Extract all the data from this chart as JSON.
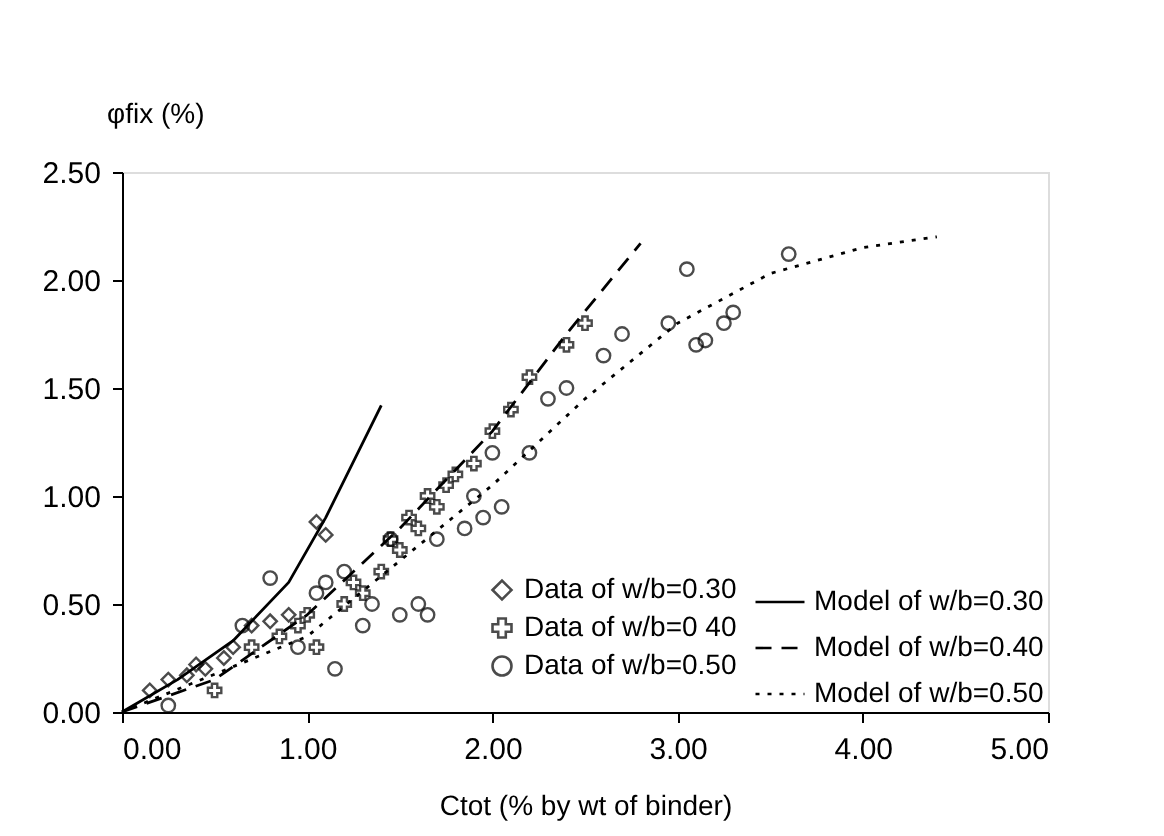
{
  "chart_data": {
    "type": "scatter",
    "ylabel": "φfix (%)",
    "xlabel": "Ctot (% by wt of binder)",
    "xlim": [
      0,
      5
    ],
    "xticks": [
      {
        "value": 0,
        "label": "0.00"
      },
      {
        "value": 1,
        "label": "1.00"
      },
      {
        "value": 2,
        "label": "2.00"
      },
      {
        "value": 3,
        "label": "3.00"
      },
      {
        "value": 4,
        "label": "4.00"
      },
      {
        "value": 5,
        "label": "5.00"
      }
    ],
    "ylim": [
      0,
      2.5
    ],
    "yticks": [
      {
        "value": 0,
        "label": "0.00"
      },
      {
        "value": 0.5,
        "label": "0.50"
      },
      {
        "value": 1,
        "label": "1.00"
      },
      {
        "value": 1.5,
        "label": "1.50"
      },
      {
        "value": 2,
        "label": "2.00"
      },
      {
        "value": 2.5,
        "label": "2.50"
      }
    ],
    "grid": false,
    "legend": "bottom right",
    "series": [
      {
        "name": "Data of w/b=0.30",
        "marker": "diamond",
        "color": "#000000",
        "x": [
          0.15,
          0.25,
          0.35,
          0.45,
          0.55,
          0.7,
          0.8,
          0.9,
          1.05,
          1.1,
          0.6,
          0.4
        ],
        "values": [
          0.1,
          0.15,
          0.17,
          0.2,
          0.25,
          0.4,
          0.42,
          0.45,
          0.88,
          0.82,
          0.3,
          0.22
        ]
      },
      {
        "name": "Data of w/b=0 40",
        "marker": "cross",
        "color": "#000000",
        "x": [
          0.5,
          0.7,
          0.85,
          0.95,
          1.05,
          1.2,
          1.3,
          1.4,
          1.5,
          1.55,
          1.6,
          1.65,
          1.7,
          1.75,
          1.8,
          1.9,
          2.0,
          2.1,
          2.2,
          2.4,
          2.5,
          1.0,
          1.25,
          1.45
        ],
        "values": [
          0.1,
          0.3,
          0.35,
          0.4,
          0.3,
          0.5,
          0.55,
          0.65,
          0.75,
          0.9,
          0.85,
          1.0,
          0.95,
          1.05,
          1.1,
          1.15,
          1.3,
          1.4,
          1.55,
          1.7,
          1.8,
          0.45,
          0.6,
          0.8
        ]
      },
      {
        "name": "Data of w/b=0.50",
        "marker": "circle",
        "color": "#000000",
        "x": [
          0.25,
          0.65,
          0.8,
          0.95,
          1.15,
          1.1,
          1.2,
          1.3,
          1.35,
          1.5,
          1.6,
          1.65,
          1.7,
          1.85,
          1.95,
          2.0,
          2.2,
          2.3,
          2.4,
          2.6,
          2.7,
          2.95,
          3.05,
          3.1,
          3.15,
          3.25,
          3.3,
          3.6,
          1.05,
          1.45,
          1.9,
          2.05
        ],
        "values": [
          0.03,
          0.4,
          0.62,
          0.3,
          0.2,
          0.6,
          0.65,
          0.4,
          0.5,
          0.45,
          0.5,
          0.45,
          0.8,
          0.85,
          0.9,
          1.2,
          1.2,
          1.45,
          1.5,
          1.65,
          1.75,
          1.8,
          2.05,
          1.7,
          1.72,
          1.8,
          1.85,
          2.12,
          0.55,
          0.8,
          1.0,
          0.95
        ]
      },
      {
        "name": "Model of w/b=0.30",
        "type": "line",
        "line_style": "solid",
        "color": "#000000",
        "x": [
          0,
          0.3,
          0.6,
          0.9,
          1.1,
          1.4
        ],
        "values": [
          0,
          0.15,
          0.33,
          0.6,
          0.9,
          1.42
        ]
      },
      {
        "name": "Model of w/b=0.40",
        "type": "line",
        "line_style": "dashed",
        "color": "#000000",
        "x": [
          0,
          0.5,
          1.0,
          1.5,
          2.0,
          2.4,
          2.8
        ],
        "values": [
          0,
          0.15,
          0.45,
          0.85,
          1.3,
          1.75,
          2.17
        ]
      },
      {
        "name": "Model of w/b=0.50",
        "type": "line",
        "line_style": "dotted",
        "color": "#000000",
        "x": [
          0,
          1,
          2,
          2.5,
          3,
          3.5,
          4,
          4.4
        ],
        "values": [
          0,
          0.35,
          1.05,
          1.45,
          1.8,
          2.03,
          2.15,
          2.2
        ]
      }
    ]
  }
}
